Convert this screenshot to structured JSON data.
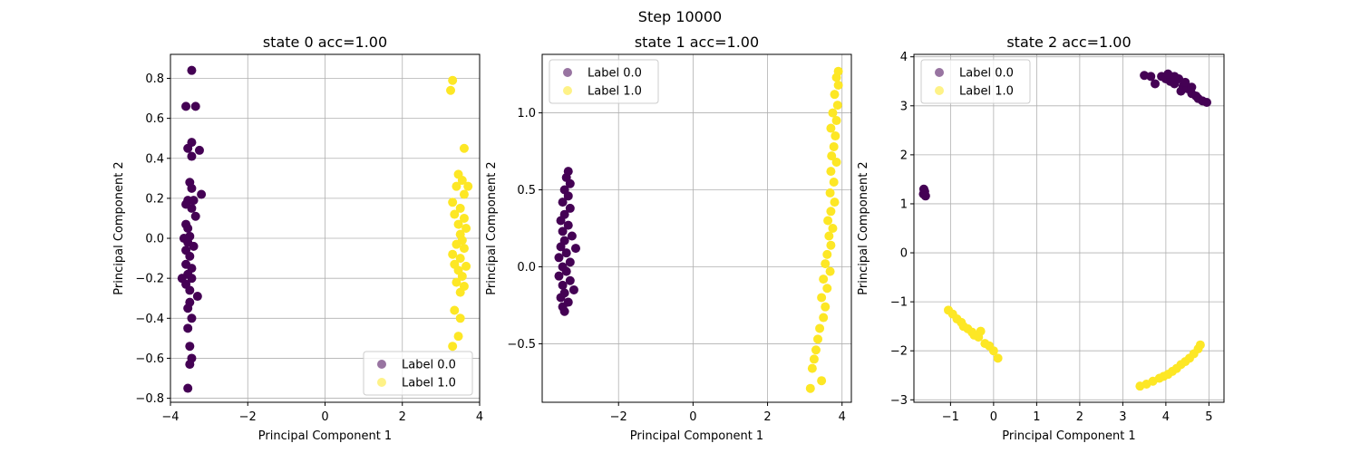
{
  "figure": {
    "suptitle": "Step 10000",
    "colors": {
      "label0": "#440154",
      "label1": "#fde725",
      "grid": "#b0b0b0"
    }
  },
  "chart_data": [
    {
      "type": "scatter",
      "title": "state 0 acc=1.00",
      "xlabel": "Principal Component 1",
      "ylabel": "Principal Component 2",
      "xlim": [
        -4,
        4
      ],
      "ylim": [
        -0.82,
        0.92
      ],
      "xticks": [
        -4,
        -2,
        0,
        2,
        4
      ],
      "yticks": [
        -0.8,
        -0.6,
        -0.4,
        -0.2,
        0.0,
        0.2,
        0.4,
        0.6,
        0.8
      ],
      "grid": true,
      "legend": "lower-right",
      "series": [
        {
          "name": "Label 0.0",
          "points": [
            [
              -3.45,
              0.84
            ],
            [
              -3.6,
              0.66
            ],
            [
              -3.35,
              0.66
            ],
            [
              -3.45,
              0.48
            ],
            [
              -3.55,
              0.45
            ],
            [
              -3.25,
              0.44
            ],
            [
              -3.45,
              0.41
            ],
            [
              -3.5,
              0.28
            ],
            [
              -3.45,
              0.25
            ],
            [
              -3.2,
              0.22
            ],
            [
              -3.55,
              0.19
            ],
            [
              -3.4,
              0.19
            ],
            [
              -3.6,
              0.17
            ],
            [
              -3.45,
              0.15
            ],
            [
              -3.35,
              0.11
            ],
            [
              -3.6,
              0.07
            ],
            [
              -3.55,
              0.05
            ],
            [
              -3.5,
              0.01
            ],
            [
              -3.65,
              0.0
            ],
            [
              -3.55,
              -0.02
            ],
            [
              -3.4,
              -0.04
            ],
            [
              -3.6,
              -0.06
            ],
            [
              -3.5,
              -0.09
            ],
            [
              -3.6,
              -0.13
            ],
            [
              -3.45,
              -0.15
            ],
            [
              -3.55,
              -0.18
            ],
            [
              -3.7,
              -0.2
            ],
            [
              -3.45,
              -0.2
            ],
            [
              -3.6,
              -0.23
            ],
            [
              -3.5,
              -0.26
            ],
            [
              -3.3,
              -0.29
            ],
            [
              -3.5,
              -0.32
            ],
            [
              -3.55,
              -0.35
            ],
            [
              -3.45,
              -0.4
            ],
            [
              -3.55,
              -0.45
            ],
            [
              -3.5,
              -0.54
            ],
            [
              -3.45,
              -0.6
            ],
            [
              -3.5,
              -0.63
            ],
            [
              -3.55,
              -0.75
            ]
          ]
        },
        {
          "name": "Label 1.0",
          "points": [
            [
              3.3,
              0.79
            ],
            [
              3.25,
              0.74
            ],
            [
              3.6,
              0.45
            ],
            [
              3.45,
              0.32
            ],
            [
              3.55,
              0.29
            ],
            [
              3.4,
              0.26
            ],
            [
              3.7,
              0.26
            ],
            [
              3.6,
              0.22
            ],
            [
              3.3,
              0.18
            ],
            [
              3.5,
              0.15
            ],
            [
              3.35,
              0.12
            ],
            [
              3.6,
              0.1
            ],
            [
              3.45,
              0.07
            ],
            [
              3.65,
              0.05
            ],
            [
              3.5,
              0.02
            ],
            [
              3.55,
              -0.01
            ],
            [
              3.4,
              -0.03
            ],
            [
              3.6,
              -0.05
            ],
            [
              3.3,
              -0.08
            ],
            [
              3.5,
              -0.1
            ],
            [
              3.35,
              -0.13
            ],
            [
              3.65,
              -0.14
            ],
            [
              3.45,
              -0.16
            ],
            [
              3.55,
              -0.19
            ],
            [
              3.4,
              -0.22
            ],
            [
              3.6,
              -0.24
            ],
            [
              3.5,
              -0.27
            ],
            [
              3.35,
              -0.36
            ],
            [
              3.5,
              -0.4
            ],
            [
              3.45,
              -0.49
            ],
            [
              3.3,
              -0.54
            ]
          ]
        }
      ]
    },
    {
      "type": "scatter",
      "title": "state 1 acc=1.00",
      "xlabel": "Principal Component 1",
      "ylabel": "Principal Component 2",
      "xlim": [
        -4.05,
        4.25
      ],
      "ylim": [
        -0.88,
        1.38
      ],
      "xticks": [
        -2,
        0,
        2,
        4
      ],
      "yticks": [
        -0.5,
        0.0,
        0.5,
        1.0
      ],
      "grid": true,
      "legend": "upper-left",
      "series": [
        {
          "name": "Label 0.0",
          "points": [
            [
              -3.35,
              0.62
            ],
            [
              -3.4,
              0.58
            ],
            [
              -3.3,
              0.54
            ],
            [
              -3.45,
              0.5
            ],
            [
              -3.35,
              0.46
            ],
            [
              -3.5,
              0.42
            ],
            [
              -3.3,
              0.38
            ],
            [
              -3.45,
              0.34
            ],
            [
              -3.55,
              0.3
            ],
            [
              -3.35,
              0.27
            ],
            [
              -3.5,
              0.23
            ],
            [
              -3.25,
              0.2
            ],
            [
              -3.45,
              0.17
            ],
            [
              -3.55,
              0.13
            ],
            [
              -3.15,
              0.12
            ],
            [
              -3.4,
              0.09
            ],
            [
              -3.6,
              0.06
            ],
            [
              -3.3,
              0.03
            ],
            [
              -3.5,
              0.0
            ],
            [
              -3.4,
              -0.03
            ],
            [
              -3.6,
              -0.06
            ],
            [
              -3.3,
              -0.09
            ],
            [
              -3.5,
              -0.12
            ],
            [
              -3.2,
              -0.15
            ],
            [
              -3.45,
              -0.17
            ],
            [
              -3.55,
              -0.2
            ],
            [
              -3.35,
              -0.23
            ],
            [
              -3.5,
              -0.26
            ],
            [
              -3.45,
              -0.29
            ]
          ]
        },
        {
          "name": "Label 1.0",
          "points": [
            [
              3.9,
              1.27
            ],
            [
              3.85,
              1.23
            ],
            [
              3.9,
              1.18
            ],
            [
              3.8,
              1.12
            ],
            [
              3.88,
              1.05
            ],
            [
              3.75,
              1.0
            ],
            [
              3.85,
              0.95
            ],
            [
              3.7,
              0.9
            ],
            [
              3.82,
              0.85
            ],
            [
              3.78,
              0.78
            ],
            [
              3.72,
              0.72
            ],
            [
              3.85,
              0.68
            ],
            [
              3.7,
              0.62
            ],
            [
              3.78,
              0.55
            ],
            [
              3.68,
              0.48
            ],
            [
              3.8,
              0.42
            ],
            [
              3.7,
              0.36
            ],
            [
              3.62,
              0.3
            ],
            [
              3.75,
              0.25
            ],
            [
              3.65,
              0.2
            ],
            [
              3.7,
              0.14
            ],
            [
              3.6,
              0.08
            ],
            [
              3.55,
              0.02
            ],
            [
              3.68,
              -0.03
            ],
            [
              3.5,
              -0.08
            ],
            [
              3.6,
              -0.14
            ],
            [
              3.45,
              -0.2
            ],
            [
              3.55,
              -0.26
            ],
            [
              3.5,
              -0.33
            ],
            [
              3.4,
              -0.4
            ],
            [
              3.35,
              -0.47
            ],
            [
              3.3,
              -0.54
            ],
            [
              3.25,
              -0.6
            ],
            [
              3.2,
              -0.66
            ],
            [
              3.45,
              -0.74
            ],
            [
              3.15,
              -0.79
            ]
          ]
        }
      ]
    },
    {
      "type": "scatter",
      "title": "state 2 acc=1.00",
      "xlabel": "Principal Component 1",
      "ylabel": "Principal Component 2",
      "xlim": [
        -1.85,
        5.35
      ],
      "ylim": [
        -3.05,
        4.05
      ],
      "xticks": [
        -1,
        0,
        1,
        2,
        3,
        4,
        5
      ],
      "yticks": [
        -3,
        -2,
        -1,
        0,
        1,
        2,
        3,
        4
      ],
      "grid": true,
      "legend": "upper-left",
      "series": [
        {
          "name": "Label 0.0",
          "points": [
            [
              -1.62,
              1.3
            ],
            [
              -1.6,
              1.25
            ],
            [
              -1.63,
              1.2
            ],
            [
              -1.58,
              1.16
            ],
            [
              3.5,
              3.62
            ],
            [
              3.65,
              3.6
            ],
            [
              3.75,
              3.45
            ],
            [
              3.9,
              3.6
            ],
            [
              4.0,
              3.55
            ],
            [
              4.1,
              3.5
            ],
            [
              4.05,
              3.65
            ],
            [
              4.2,
              3.45
            ],
            [
              4.3,
              3.55
            ],
            [
              4.4,
              3.4
            ],
            [
              4.35,
              3.3
            ],
            [
              4.5,
              3.35
            ],
            [
              4.6,
              3.25
            ],
            [
              4.7,
              3.2
            ],
            [
              4.75,
              3.15
            ],
            [
              4.85,
              3.1
            ],
            [
              4.95,
              3.07
            ],
            [
              4.2,
              3.6
            ],
            [
              4.45,
              3.48
            ],
            [
              4.6,
              3.38
            ]
          ]
        },
        {
          "name": "Label 1.0",
          "points": [
            [
              -1.05,
              -1.17
            ],
            [
              -0.95,
              -1.25
            ],
            [
              -0.85,
              -1.35
            ],
            [
              -0.75,
              -1.42
            ],
            [
              -0.7,
              -1.5
            ],
            [
              -0.6,
              -1.55
            ],
            [
              -0.5,
              -1.62
            ],
            [
              -0.45,
              -1.68
            ],
            [
              -0.35,
              -1.72
            ],
            [
              -0.3,
              -1.6
            ],
            [
              -0.2,
              -1.85
            ],
            [
              -0.1,
              -1.9
            ],
            [
              0.0,
              -2.0
            ],
            [
              0.1,
              -2.15
            ],
            [
              3.4,
              -2.72
            ],
            [
              3.55,
              -2.68
            ],
            [
              3.7,
              -2.62
            ],
            [
              3.85,
              -2.56
            ],
            [
              3.95,
              -2.52
            ],
            [
              4.05,
              -2.48
            ],
            [
              4.15,
              -2.42
            ],
            [
              4.25,
              -2.36
            ],
            [
              4.35,
              -2.28
            ],
            [
              4.45,
              -2.22
            ],
            [
              4.55,
              -2.15
            ],
            [
              4.65,
              -2.06
            ],
            [
              4.75,
              -1.96
            ],
            [
              4.8,
              -1.88
            ]
          ]
        }
      ]
    }
  ]
}
